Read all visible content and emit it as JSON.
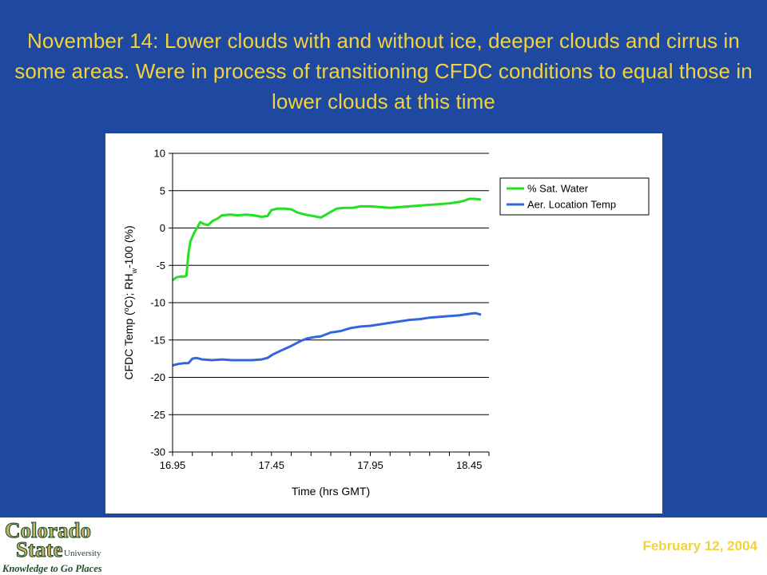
{
  "slide": {
    "title": "November 14: Lower clouds with and without ice, deeper clouds and cirrus in some areas. Were in process of transitioning CFDC conditions to equal those in lower clouds at this time",
    "date": "February 12, 2004"
  },
  "logo": {
    "line1": "Colorado",
    "line2": "State",
    "line3": "University",
    "tagline": "Knowledge to Go Places",
    "colors": {
      "brand": "#c8b464",
      "outline": "#1e4d2b"
    }
  },
  "chart_data": {
    "type": "line",
    "xlabel": "Time (hrs GMT)",
    "ylabel_parts": {
      "a": "CFDC Temp (",
      "sup": "o",
      "b": "C); RH",
      "sub": "w",
      "c": "-100 (%)"
    },
    "xlim": [
      16.95,
      18.55
    ],
    "ylim": [
      -30,
      10
    ],
    "xticks": [
      "16.95",
      "17.45",
      "17.95",
      "18.45"
    ],
    "xtick_values": [
      16.95,
      17.45,
      17.95,
      18.45
    ],
    "yticks": [
      10,
      5,
      0,
      -5,
      -10,
      -15,
      -20,
      -25,
      -30
    ],
    "grid": "horizontal",
    "legend_position": "top-right",
    "series": [
      {
        "name": "% Sat. Water",
        "color": "#22e022",
        "points": [
          [
            16.95,
            -7.0
          ],
          [
            16.97,
            -6.6
          ],
          [
            16.99,
            -6.5
          ],
          [
            17.01,
            -6.5
          ],
          [
            17.02,
            -6.4
          ],
          [
            17.03,
            -3.5
          ],
          [
            17.04,
            -1.8
          ],
          [
            17.06,
            -0.6
          ],
          [
            17.08,
            0.3
          ],
          [
            17.09,
            0.8
          ],
          [
            17.11,
            0.5
          ],
          [
            17.13,
            0.4
          ],
          [
            17.15,
            0.9
          ],
          [
            17.18,
            1.3
          ],
          [
            17.2,
            1.7
          ],
          [
            17.24,
            1.8
          ],
          [
            17.28,
            1.7
          ],
          [
            17.32,
            1.8
          ],
          [
            17.36,
            1.7
          ],
          [
            17.4,
            1.5
          ],
          [
            17.43,
            1.6
          ],
          [
            17.45,
            2.4
          ],
          [
            17.48,
            2.6
          ],
          [
            17.52,
            2.6
          ],
          [
            17.55,
            2.5
          ],
          [
            17.58,
            2.1
          ],
          [
            17.62,
            1.8
          ],
          [
            17.66,
            1.6
          ],
          [
            17.7,
            1.4
          ],
          [
            17.74,
            2.0
          ],
          [
            17.78,
            2.6
          ],
          [
            17.82,
            2.7
          ],
          [
            17.86,
            2.7
          ],
          [
            17.9,
            2.9
          ],
          [
            17.95,
            2.9
          ],
          [
            18.0,
            2.8
          ],
          [
            18.05,
            2.7
          ],
          [
            18.1,
            2.8
          ],
          [
            18.15,
            2.9
          ],
          [
            18.2,
            3.0
          ],
          [
            18.25,
            3.1
          ],
          [
            18.3,
            3.2
          ],
          [
            18.35,
            3.3
          ],
          [
            18.4,
            3.5
          ],
          [
            18.43,
            3.7
          ],
          [
            18.45,
            3.9
          ],
          [
            18.48,
            3.9
          ],
          [
            18.51,
            3.8
          ]
        ]
      },
      {
        "name": "Aer. Location Temp",
        "color": "#3366dd",
        "points": [
          [
            16.95,
            -18.4
          ],
          [
            16.98,
            -18.2
          ],
          [
            17.01,
            -18.1
          ],
          [
            17.03,
            -18.1
          ],
          [
            17.05,
            -17.5
          ],
          [
            17.07,
            -17.4
          ],
          [
            17.1,
            -17.6
          ],
          [
            17.15,
            -17.7
          ],
          [
            17.2,
            -17.6
          ],
          [
            17.25,
            -17.7
          ],
          [
            17.3,
            -17.7
          ],
          [
            17.35,
            -17.7
          ],
          [
            17.4,
            -17.6
          ],
          [
            17.43,
            -17.4
          ],
          [
            17.46,
            -16.9
          ],
          [
            17.5,
            -16.4
          ],
          [
            17.55,
            -15.8
          ],
          [
            17.6,
            -15.1
          ],
          [
            17.63,
            -14.8
          ],
          [
            17.67,
            -14.6
          ],
          [
            17.7,
            -14.5
          ],
          [
            17.75,
            -14.0
          ],
          [
            17.8,
            -13.8
          ],
          [
            17.85,
            -13.4
          ],
          [
            17.9,
            -13.2
          ],
          [
            17.95,
            -13.1
          ],
          [
            18.0,
            -12.9
          ],
          [
            18.05,
            -12.7
          ],
          [
            18.1,
            -12.5
          ],
          [
            18.15,
            -12.3
          ],
          [
            18.2,
            -12.2
          ],
          [
            18.25,
            -12.0
          ],
          [
            18.3,
            -11.9
          ],
          [
            18.35,
            -11.8
          ],
          [
            18.4,
            -11.7
          ],
          [
            18.45,
            -11.5
          ],
          [
            18.48,
            -11.4
          ],
          [
            18.51,
            -11.6
          ]
        ]
      }
    ]
  }
}
